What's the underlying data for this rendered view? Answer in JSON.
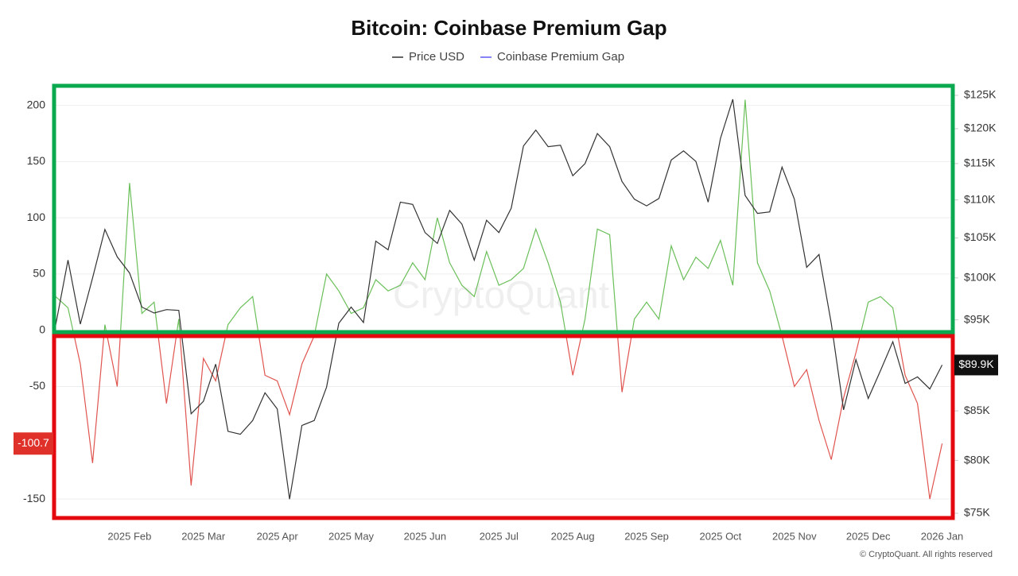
{
  "chart_data": {
    "type": "line",
    "title": "Bitcoin: Coinbase Premium Gap",
    "watermark": "CryptoQuant",
    "credit": "© CryptoQuant. All rights reserved",
    "categories": [
      null,
      null,
      null,
      null,
      null,
      null,
      "2025 Feb",
      null,
      null,
      null,
      null,
      null,
      "2025 Mar",
      null,
      null,
      null,
      null,
      null,
      "2025 Apr",
      null,
      null,
      null,
      null,
      null,
      "2025 May",
      null,
      null,
      null,
      null,
      null,
      "2025 Jun",
      null,
      null,
      null,
      null,
      null,
      "2025 Jul",
      null,
      null,
      null,
      null,
      null,
      "2025 Aug",
      null,
      null,
      null,
      null,
      null,
      "2025 Sep",
      null,
      null,
      null,
      null,
      null,
      "2025 Oct",
      null,
      null,
      null,
      null,
      null,
      "2025 Nov",
      null,
      null,
      null,
      null,
      null,
      "2025 Dec",
      null,
      null,
      null,
      null,
      null,
      "2026 Jan"
    ],
    "series": [
      {
        "name": "Price USD",
        "color": "#333333",
        "axis": "y2",
        "values": [
          94400,
          102200,
          94500,
          100000,
          106100,
          102600,
          100600,
          96500,
          95800,
          96200,
          96100,
          84700,
          86000,
          90000,
          82900,
          82600,
          84000,
          86900,
          85200,
          76300,
          83500,
          84000,
          87500,
          94600,
          96500,
          94700,
          104600,
          103500,
          109700,
          109400,
          105700,
          104300,
          108600,
          106800,
          102200,
          107300,
          105700,
          108900,
          117500,
          119800,
          117400,
          117600,
          113300,
          115000,
          119300,
          117400,
          112500,
          110100,
          109200,
          110200,
          115500,
          116800,
          115300,
          109700,
          118600,
          124400,
          110600,
          108200,
          108400,
          114500,
          110100,
          101300,
          102900,
          94600,
          85100,
          90500,
          86300,
          89300,
          92500,
          87900,
          88600,
          87300,
          89900
        ],
        "last_label": {
          "value": 89900,
          "label": "$89.9K"
        }
      },
      {
        "name": "Coinbase Premium Gap",
        "color": "#5b5bf0",
        "positive_color": "#6abf59",
        "negative_color": "#e0544f",
        "values": [
          30,
          20,
          -30,
          -118,
          5,
          -50,
          131,
          15,
          25,
          -65,
          10,
          -138,
          -25,
          -45,
          5,
          20,
          30,
          -40,
          -45,
          -75,
          -30,
          -5,
          50,
          35,
          15,
          20,
          45,
          35,
          40,
          60,
          45,
          100,
          60,
          40,
          30,
          70,
          40,
          45,
          55,
          90,
          60,
          25,
          -40,
          10,
          90,
          85,
          -55,
          10,
          25,
          10,
          75,
          45,
          65,
          55,
          80,
          40,
          205,
          60,
          35,
          -5,
          -50,
          -35,
          -80,
          -115,
          -60,
          -20,
          25,
          30,
          20,
          -40,
          -65,
          -150,
          -100.7
        ],
        "last_label": {
          "value": -100.7,
          "label": "-100.7"
        }
      }
    ],
    "ylim": [
      -169,
      223
    ],
    "yticks": [
      -150,
      -50,
      0,
      50,
      100,
      150,
      200
    ],
    "y2lim": [
      74350,
      127450
    ],
    "y2log": true,
    "y2ticks": [
      {
        "value": 75000,
        "label": "$75K"
      },
      {
        "value": 80000,
        "label": "$80K"
      },
      {
        "value": 85000,
        "label": "$85K"
      },
      {
        "value": 95000,
        "label": "$95K"
      },
      {
        "value": 100000,
        "label": "$100K"
      },
      {
        "value": 105000,
        "label": "$105K"
      },
      {
        "value": 110000,
        "label": "$110K"
      },
      {
        "value": 115000,
        "label": "$115K"
      },
      {
        "value": 120000,
        "label": "$120K"
      },
      {
        "value": 125000,
        "label": "$125K"
      }
    ],
    "grid": true
  }
}
